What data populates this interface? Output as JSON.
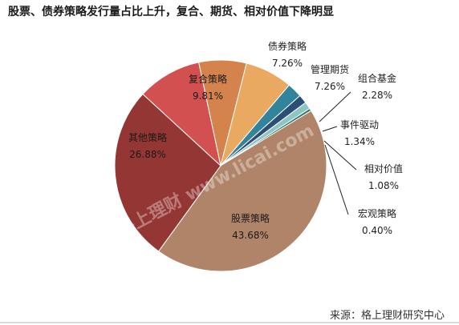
{
  "title": "股票、债券策略发行量占比上升，复合、期货、相对价值下降明显",
  "source": "来源：格上理财研究中心",
  "watermark": "格上理财 www.licai.com",
  "chart_data": {
    "type": "pie",
    "title": "股票、债券策略发行量占比上升，复合、期货、相对价值下降明显",
    "slices": [
      {
        "label": "股票策略",
        "value": 43.68,
        "value_text": "43.68%",
        "color": "#b08468"
      },
      {
        "label": "其他策略",
        "value": 26.88,
        "value_text": "26.88%",
        "color": "#943634"
      },
      {
        "label": "复合策略",
        "value": 9.81,
        "value_text": "9.81%",
        "color": "#d35050"
      },
      {
        "label": "债券策略",
        "value": 7.26,
        "value_text": "7.26%",
        "color": "#d4834c"
      },
      {
        "label": "管理期货",
        "value": 7.26,
        "value_text": "7.26%",
        "color": "#eaa960"
      },
      {
        "label": "组合基金",
        "value": 2.28,
        "value_text": "2.28%",
        "color": "#31849b"
      },
      {
        "label": "事件驱动",
        "value": 1.34,
        "value_text": "1.34%",
        "color": "#2c4d75"
      },
      {
        "label": "相对价值",
        "value": 1.08,
        "value_text": "1.08%",
        "color": "#8fc4c4"
      },
      {
        "label": "宏观策略",
        "value": 0.4,
        "value_text": "0.40%",
        "color": "#2e7a6a"
      }
    ]
  }
}
